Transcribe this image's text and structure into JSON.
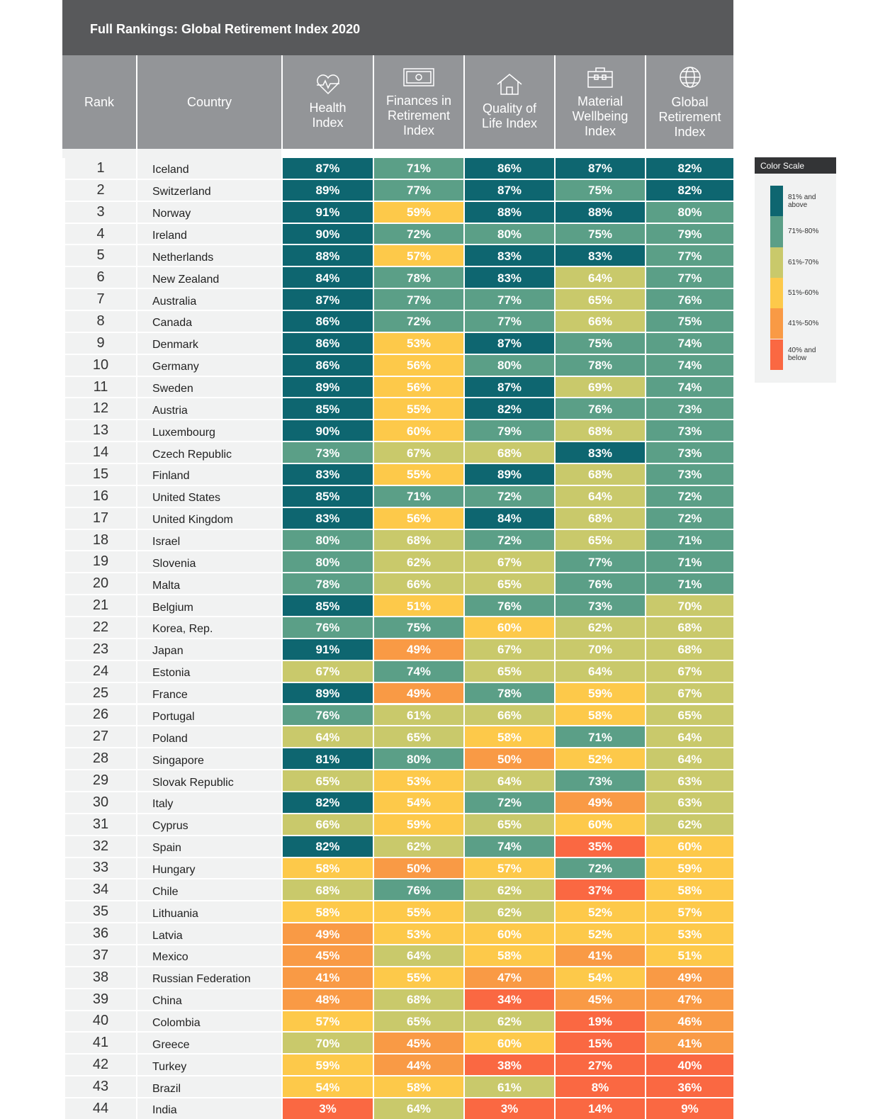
{
  "header": {
    "title": "Full Rankings: Global Retirement Index 2020"
  },
  "table": {
    "columns": [
      "Rank",
      "Country",
      "Health Index",
      "Finances in Retirement Index",
      "Quality of Life Index",
      "Material Wellbeing Index",
      "Global Retirement Index"
    ],
    "rows": [
      [
        1,
        "Iceland",
        "87%",
        "71%",
        "86%",
        "87%",
        "82%"
      ],
      [
        2,
        "Switzerland",
        "89%",
        "77%",
        "87%",
        "75%",
        "82%"
      ],
      [
        3,
        "Norway",
        "91%",
        "59%",
        "88%",
        "88%",
        "80%"
      ],
      [
        4,
        "Ireland",
        "90%",
        "72%",
        "80%",
        "75%",
        "79%"
      ],
      [
        5,
        "Netherlands",
        "88%",
        "57%",
        "83%",
        "83%",
        "77%"
      ],
      [
        6,
        "New Zealand",
        "84%",
        "78%",
        "83%",
        "64%",
        "77%"
      ],
      [
        7,
        "Australia",
        "87%",
        "77%",
        "77%",
        "65%",
        "76%"
      ],
      [
        8,
        "Canada",
        "86%",
        "72%",
        "77%",
        "66%",
        "75%"
      ],
      [
        9,
        "Denmark",
        "86%",
        "53%",
        "87%",
        "75%",
        "74%"
      ],
      [
        10,
        "Germany",
        "86%",
        "56%",
        "80%",
        "78%",
        "74%"
      ],
      [
        11,
        "Sweden",
        "89%",
        "56%",
        "87%",
        "69%",
        "74%"
      ],
      [
        12,
        "Austria",
        "85%",
        "55%",
        "82%",
        "76%",
        "73%"
      ],
      [
        13,
        "Luxembourg",
        "90%",
        "60%",
        "79%",
        "68%",
        "73%"
      ],
      [
        14,
        "Czech Republic",
        "73%",
        "67%",
        "68%",
        "83%",
        "73%"
      ],
      [
        15,
        "Finland",
        "83%",
        "55%",
        "89%",
        "68%",
        "73%"
      ],
      [
        16,
        "United States",
        "85%",
        "71%",
        "72%",
        "64%",
        "72%"
      ],
      [
        17,
        "United Kingdom",
        "83%",
        "56%",
        "84%",
        "68%",
        "72%"
      ],
      [
        18,
        "Israel",
        "80%",
        "68%",
        "72%",
        "65%",
        "71%"
      ],
      [
        19,
        "Slovenia",
        "80%",
        "62%",
        "67%",
        "77%",
        "71%"
      ],
      [
        20,
        "Malta",
        "78%",
        "66%",
        "65%",
        "76%",
        "71%"
      ],
      [
        21,
        "Belgium",
        "85%",
        "51%",
        "76%",
        "73%",
        "70%"
      ],
      [
        22,
        "Korea, Rep.",
        "76%",
        "75%",
        "60%",
        "62%",
        "68%"
      ],
      [
        23,
        "Japan",
        "91%",
        "49%",
        "67%",
        "70%",
        "68%"
      ],
      [
        24,
        "Estonia",
        "67%",
        "74%",
        "65%",
        "64%",
        "67%"
      ],
      [
        25,
        "France",
        "89%",
        "49%",
        "78%",
        "59%",
        "67%"
      ],
      [
        26,
        "Portugal",
        "76%",
        "61%",
        "66%",
        "58%",
        "65%"
      ],
      [
        27,
        "Poland",
        "64%",
        "65%",
        "58%",
        "71%",
        "64%"
      ],
      [
        28,
        "Singapore",
        "81%",
        "80%",
        "50%",
        "52%",
        "64%"
      ],
      [
        29,
        "Slovak Republic",
        "65%",
        "53%",
        "64%",
        "73%",
        "63%"
      ],
      [
        30,
        "Italy",
        "82%",
        "54%",
        "72%",
        "49%",
        "63%"
      ],
      [
        31,
        "Cyprus",
        "66%",
        "59%",
        "65%",
        "60%",
        "62%"
      ],
      [
        32,
        "Spain",
        "82%",
        "62%",
        "74%",
        "35%",
        "60%"
      ],
      [
        33,
        "Hungary",
        "58%",
        "50%",
        "57%",
        "72%",
        "59%"
      ],
      [
        34,
        "Chile",
        "68%",
        "76%",
        "62%",
        "37%",
        "58%"
      ],
      [
        35,
        "Lithuania",
        "58%",
        "55%",
        "62%",
        "52%",
        "57%"
      ],
      [
        36,
        "Latvia",
        "49%",
        "53%",
        "60%",
        "52%",
        "53%"
      ],
      [
        37,
        "Mexico",
        "45%",
        "64%",
        "58%",
        "41%",
        "51%"
      ],
      [
        38,
        "Russian Federation",
        "41%",
        "55%",
        "47%",
        "54%",
        "49%"
      ],
      [
        39,
        "China",
        "48%",
        "68%",
        "34%",
        "45%",
        "47%"
      ],
      [
        40,
        "Colombia",
        "57%",
        "65%",
        "62%",
        "19%",
        "46%"
      ],
      [
        41,
        "Greece",
        "70%",
        "45%",
        "60%",
        "15%",
        "41%"
      ],
      [
        42,
        "Turkey",
        "59%",
        "44%",
        "38%",
        "27%",
        "40%"
      ],
      [
        43,
        "Brazil",
        "54%",
        "58%",
        "61%",
        "8%",
        "36%"
      ],
      [
        44,
        "India",
        "3%",
        "64%",
        "3%",
        "14%",
        "9%"
      ]
    ]
  },
  "legend": {
    "title": "Color Scale",
    "items": [
      {
        "label": "81% and above",
        "color": "#0e6670"
      },
      {
        "label": "71%-80%",
        "color": "#5b9f87"
      },
      {
        "label": "61%-70%",
        "color": "#c9c96b"
      },
      {
        "label": "51%-60%",
        "color": "#fdc94a"
      },
      {
        "label": "41%-50%",
        "color": "#f99a45"
      },
      {
        "label": "40% and below",
        "color": "#fa6842"
      }
    ]
  }
}
